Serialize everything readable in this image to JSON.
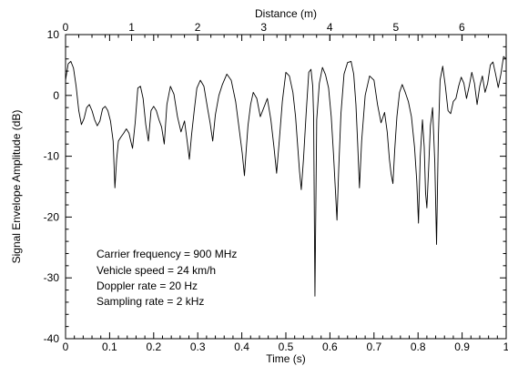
{
  "chart_data": {
    "type": "line",
    "title": "",
    "xlabel": "Time (s)",
    "ylabel": "Signal Envelope Amplitude (dB)",
    "x2label": "Distance (m)",
    "xlim": [
      0,
      1
    ],
    "ylim": [
      -40,
      10
    ],
    "x2lim": [
      0,
      6.67
    ],
    "x_ticks": [
      0,
      0.1,
      0.2,
      0.3,
      0.4,
      0.5,
      0.6,
      0.7,
      0.8,
      0.9,
      1
    ],
    "x_tick_labels": [
      "0",
      "0.1",
      "0.2",
      "0.3",
      "0.4",
      "0.5",
      "0.6",
      "0.7",
      "0.8",
      "0.9",
      "1"
    ],
    "y_ticks": [
      -40,
      -30,
      -20,
      -10,
      0,
      10
    ],
    "y_tick_labels": [
      "-40",
      "-30",
      "-20",
      "-10",
      "0",
      "10"
    ],
    "x2_ticks": [
      0,
      1,
      2,
      3,
      4,
      5,
      6
    ],
    "x2_tick_labels": [
      "0",
      "1",
      "2",
      "3",
      "4",
      "5",
      "6"
    ],
    "grid": false,
    "legend": "none",
    "annotations": [
      "Carrier frequency = 900 MHz",
      "Vehicle speed = 24 km/h",
      "Doppler rate = 20 Hz",
      "Sampling rate = 2 kHz"
    ],
    "series": [
      {
        "color": "#000000",
        "x": [
          0,
          0.006,
          0.012,
          0.018,
          0.024,
          0.03,
          0.036,
          0.042,
          0.048,
          0.054,
          0.06,
          0.066,
          0.072,
          0.078,
          0.084,
          0.09,
          0.096,
          0.102,
          0.108,
          0.112,
          0.116,
          0.12,
          0.126,
          0.132,
          0.138,
          0.144,
          0.148,
          0.152,
          0.158,
          0.164,
          0.17,
          0.176,
          0.182,
          0.188,
          0.194,
          0.2,
          0.206,
          0.212,
          0.218,
          0.224,
          0.23,
          0.238,
          0.246,
          0.254,
          0.262,
          0.27,
          0.276,
          0.281,
          0.286,
          0.292,
          0.298,
          0.306,
          0.314,
          0.322,
          0.328,
          0.334,
          0.34,
          0.348,
          0.356,
          0.366,
          0.376,
          0.386,
          0.394,
          0.401,
          0.406,
          0.41,
          0.414,
          0.42,
          0.426,
          0.434,
          0.442,
          0.45,
          0.458,
          0.466,
          0.473,
          0.479,
          0.485,
          0.492,
          0.5,
          0.508,
          0.516,
          0.522,
          0.527,
          0.531,
          0.535,
          0.54,
          0.546,
          0.552,
          0.557,
          0.561,
          0.563,
          0.566,
          0.57,
          0.576,
          0.583,
          0.59,
          0.597,
          0.603,
          0.608,
          0.612,
          0.616,
          0.62,
          0.625,
          0.632,
          0.64,
          0.648,
          0.654,
          0.659,
          0.663,
          0.667,
          0.672,
          0.68,
          0.69,
          0.7,
          0.708,
          0.716,
          0.724,
          0.73,
          0.735,
          0.739,
          0.743,
          0.747,
          0.752,
          0.758,
          0.764,
          0.771,
          0.778,
          0.785,
          0.792,
          0.797,
          0.801,
          0.805,
          0.81,
          0.814,
          0.817,
          0.82,
          0.824,
          0.828,
          0.833,
          0.838,
          0.842,
          0.846,
          0.85,
          0.856,
          0.862,
          0.868,
          0.874,
          0.88,
          0.886,
          0.892,
          0.898,
          0.904,
          0.91,
          0.916,
          0.922,
          0.928,
          0.934,
          0.94,
          0.946,
          0.952,
          0.958,
          0.964,
          0.97,
          0.976,
          0.982,
          0.988,
          0.994,
          1.0
        ],
        "y": [
          2.5,
          5.2,
          5.6,
          4.5,
          1.5,
          -2.5,
          -4.8,
          -3.8,
          -2,
          -1.5,
          -2.5,
          -4,
          -5,
          -4.2,
          -2.2,
          -1.8,
          -2.5,
          -4.2,
          -7.5,
          -15.2,
          -10.5,
          -7.5,
          -6.8,
          -6.2,
          -5.5,
          -6.2,
          -7.5,
          -8.7,
          -4.5,
          1.2,
          1.5,
          -0.5,
          -4.8,
          -7.5,
          -2.5,
          -1.8,
          -2.5,
          -4,
          -5.2,
          -8,
          -1.5,
          1.5,
          0.2,
          -3.5,
          -6,
          -4.2,
          -7.5,
          -10.5,
          -6.5,
          -2.5,
          1.2,
          2.5,
          1.5,
          -2,
          -4.5,
          -7.5,
          -3.2,
          0,
          1.8,
          3.5,
          2.5,
          -1,
          -5.5,
          -9.5,
          -13.2,
          -9,
          -5,
          -1.5,
          0.5,
          -0.5,
          -3.5,
          -2,
          -0.5,
          -4,
          -8.5,
          -12.8,
          -7.5,
          -1,
          3.8,
          3.2,
          0.5,
          -3.5,
          -8.5,
          -12.5,
          -15.5,
          -10.5,
          -3,
          3.8,
          4.3,
          1.5,
          -3.5,
          -33,
          -4,
          2,
          4.6,
          3.4,
          1.2,
          -3.5,
          -9.5,
          -15,
          -20.5,
          -12,
          -3,
          3.5,
          5.4,
          5.6,
          3.5,
          -1.5,
          -8,
          -15.2,
          -7.5,
          0,
          3.2,
          2.5,
          -1.5,
          -4.5,
          -2.8,
          -6,
          -10.5,
          -13,
          -14.5,
          -9,
          -3.5,
          0.5,
          1.8,
          0.5,
          -1,
          -3.5,
          -8.5,
          -14,
          -21,
          -10,
          -4,
          -8.5,
          -16,
          -18.5,
          -12,
          -5,
          -2,
          -11,
          -24.5,
          -7,
          2.5,
          4.8,
          1.5,
          -2.5,
          -3,
          -1,
          -0.5,
          1.5,
          3,
          2,
          -0.5,
          1.5,
          3.8,
          2,
          -1.5,
          1.5,
          3.2,
          0.5,
          2,
          5,
          5.5,
          3.5,
          1.3,
          3.5,
          6.4,
          6
        ]
      }
    ]
  }
}
